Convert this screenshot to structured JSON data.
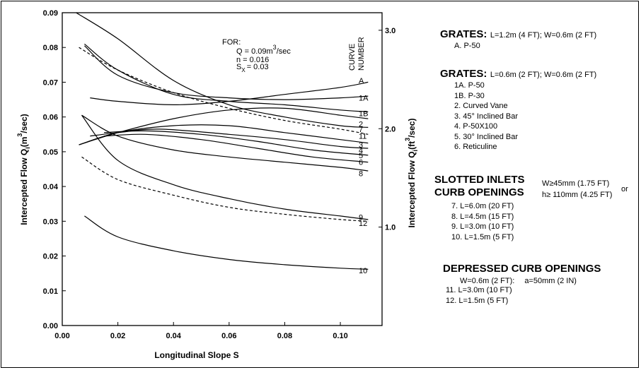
{
  "chart_data": {
    "type": "line",
    "xlabel": "Longitudinal Slope  S",
    "ylabel_left": "Intercepted Flow  Q",
    "ylabel_left_sub": "i",
    "ylabel_left_unit": "(m",
    "ylabel_left_sup": "3",
    "ylabel_left_unit_end": "/sec)",
    "ylabel_right": "Intercepted Flow  Q",
    "ylabel_right_sub": "i",
    "ylabel_right_unit": "(ft",
    "ylabel_right_sup": "3",
    "ylabel_right_unit_end": "/sec)",
    "xlim": [
      0,
      0.115
    ],
    "ylim": [
      0,
      0.09
    ],
    "x_ticks": [
      "0.00",
      "0.02",
      "0.04",
      "0.06",
      "0.08",
      "0.10"
    ],
    "x_tick_values": [
      0,
      0.02,
      0.04,
      0.06,
      0.08,
      0.1
    ],
    "y_ticks": [
      "0.00",
      "0.01",
      "0.02",
      "0.03",
      "0.04",
      "0.05",
      "0.06",
      "0.07",
      "0.08",
      "0.09"
    ],
    "y_tick_values": [
      0,
      0.01,
      0.02,
      0.03,
      0.04,
      0.05,
      0.06,
      0.07,
      0.08,
      0.09
    ],
    "y2_ticks": [
      "1.0",
      "2.0",
      "3.0"
    ],
    "y2_tick_values_m3s": [
      0.02832,
      0.05663,
      0.08495
    ],
    "curve_number_label": [
      "CURVE",
      "NUMBER"
    ],
    "annotation": {
      "for": "FOR:",
      "q_line": "Q = 0.09m",
      "q_sup": "3",
      "q_end": "/sec",
      "n_line": "n = 0.016",
      "sx_line": "S",
      "sx_sub": "X",
      "sx_end": "= 0.03"
    },
    "series": [
      {
        "name": "A",
        "dashed": false,
        "x": [
          0.005,
          0.02,
          0.04,
          0.06,
          0.08,
          0.1,
          0.11
        ],
        "y": [
          0.09,
          0.0825,
          0.0705,
          0.0635,
          0.06,
          0.0575,
          0.057
        ]
      },
      {
        "name": "1A",
        "dashed": false,
        "x": [
          0.008,
          0.02,
          0.04,
          0.06,
          0.08,
          0.1,
          0.11
        ],
        "y": [
          0.081,
          0.0735,
          0.0665,
          0.0645,
          0.0635,
          0.062,
          0.0615
        ]
      },
      {
        "name": "1B",
        "dashed": false,
        "x": [
          0.008,
          0.02,
          0.04,
          0.06,
          0.08,
          0.1,
          0.11
        ],
        "y": [
          0.0805,
          0.072,
          0.067,
          0.0655,
          0.065,
          0.0655,
          0.066
        ]
      },
      {
        "name": "2",
        "dashed": false,
        "x": [
          0.01,
          0.02,
          0.04,
          0.06,
          0.08,
          0.1,
          0.11
        ],
        "y": [
          0.0655,
          0.0645,
          0.0635,
          0.0645,
          0.0665,
          0.0685,
          0.07
        ]
      },
      {
        "name": "7",
        "dashed": false,
        "x": [
          0.006,
          0.02,
          0.04,
          0.06,
          0.08,
          0.1,
          0.11
        ],
        "y": [
          0.052,
          0.0555,
          0.0595,
          0.062,
          0.0625,
          0.0605,
          0.0595
        ]
      },
      {
        "name": "11",
        "dashed": true,
        "x": [
          0.006,
          0.02,
          0.04,
          0.06,
          0.08,
          0.1,
          0.11
        ],
        "y": [
          0.08,
          0.0735,
          0.067,
          0.0625,
          0.059,
          0.0565,
          0.055
        ]
      },
      {
        "name": "3",
        "dashed": false,
        "x": [
          0.006,
          0.02,
          0.04,
          0.06,
          0.08,
          0.1,
          0.11
        ],
        "y": [
          0.052,
          0.0555,
          0.0575,
          0.0575,
          0.0555,
          0.0535,
          0.0525
        ]
      },
      {
        "name": "4",
        "dashed": false,
        "x": [
          0.01,
          0.02,
          0.035,
          0.06,
          0.08,
          0.1,
          0.11
        ],
        "y": [
          0.0545,
          0.0555,
          0.0565,
          0.055,
          0.0535,
          0.0515,
          0.051
        ]
      },
      {
        "name": "5",
        "dashed": false,
        "x": [
          0.015,
          0.03,
          0.05,
          0.07,
          0.09,
          0.11
        ],
        "y": [
          0.0555,
          0.056,
          0.055,
          0.053,
          0.0505,
          0.049
        ]
      },
      {
        "name": "6",
        "dashed": false,
        "x": [
          0.015,
          0.03,
          0.05,
          0.07,
          0.09,
          0.11
        ],
        "y": [
          0.0545,
          0.055,
          0.0535,
          0.051,
          0.0485,
          0.047
        ]
      },
      {
        "name": "8",
        "dashed": false,
        "x": [
          0.007,
          0.02,
          0.04,
          0.06,
          0.08,
          0.1,
          0.11
        ],
        "y": [
          0.0605,
          0.0545,
          0.0505,
          0.0485,
          0.047,
          0.0455,
          0.0445
        ]
      },
      {
        "name": "9",
        "dashed": false,
        "x": [
          0.007,
          0.02,
          0.04,
          0.06,
          0.08,
          0.1,
          0.11
        ],
        "y": [
          0.0605,
          0.0475,
          0.0405,
          0.0365,
          0.0335,
          0.0315,
          0.0305
        ]
      },
      {
        "name": "12",
        "dashed": true,
        "x": [
          0.007,
          0.02,
          0.04,
          0.06,
          0.08,
          0.1,
          0.11
        ],
        "y": [
          0.0485,
          0.042,
          0.0375,
          0.034,
          0.032,
          0.0305,
          0.03
        ]
      },
      {
        "name": "10",
        "dashed": false,
        "x": [
          0.008,
          0.02,
          0.04,
          0.06,
          0.08,
          0.1,
          0.11
        ],
        "y": [
          0.0315,
          0.0255,
          0.0215,
          0.019,
          0.0175,
          0.0165,
          0.0162
        ]
      }
    ],
    "end_labels": [
      {
        "text": "A",
        "y": 0.0705
      },
      {
        "text": "1A",
        "y": 0.0655
      },
      {
        "text": "1B",
        "y": 0.061
      },
      {
        "text": "2",
        "y": 0.058
      },
      {
        "text": "7",
        "y": 0.0565
      },
      {
        "text": "11",
        "y": 0.0545
      },
      {
        "text": "3",
        "y": 0.052
      },
      {
        "text": "4",
        "y": 0.0505
      },
      {
        "text": "5",
        "y": 0.049
      },
      {
        "text": "6",
        "y": 0.047
      },
      {
        "text": "8",
        "y": 0.0438
      },
      {
        "text": "9",
        "y": 0.0312
      },
      {
        "text": "12",
        "y": 0.0295
      },
      {
        "text": "10",
        "y": 0.0158
      }
    ]
  },
  "legend": {
    "grates1": {
      "title": "GRATES:",
      "spec": "L=1.2m (4 FT); W=0.6m (2 FT)",
      "items": [
        "A. P-50"
      ]
    },
    "grates2": {
      "title": "GRATES:",
      "spec": "L=0.6m (2 FT); W=0.6m (2 FT)",
      "items": [
        "1A. P-50",
        "1B. P-30",
        "2. Curved Vane",
        "3. 45° Inclined Bar",
        "4. P-50X100",
        "5. 30° Inclined Bar",
        "6. Reticuline"
      ]
    },
    "slotted": {
      "title1": "SLOTTED INLETS",
      "title2": "CURB OPENINGS",
      "note1": "W≥45mm (1.75 FT)",
      "or": "or",
      "note2": "h≥ 110mm (4.25 FT)",
      "items": [
        "7. L=6.0m (20 FT)",
        "8. L=4.5m (15 FT)",
        "9. L=3.0m (10 FT)",
        "10. L=1.5m (5 FT)"
      ]
    },
    "depressed": {
      "title": "DEPRESSED CURB OPENINGS",
      "spec_w": "W=0.6m (2 FT):",
      "spec_a": "a=50mm (2 IN)",
      "items": [
        "11. L=3.0m (10 FT)",
        "12. L=1.5m (5 FT)"
      ]
    }
  }
}
